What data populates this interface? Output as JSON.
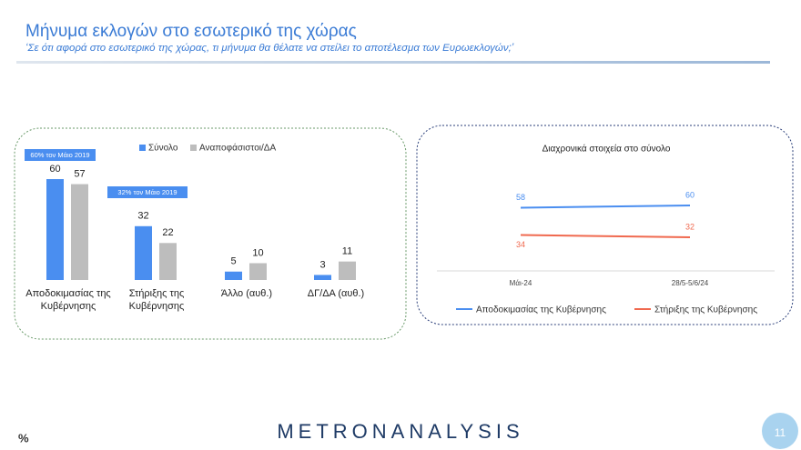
{
  "header": {
    "title": "Μήνυμα εκλογών στο εσωτερικό της χώρας",
    "subtitle": "‘Σε ότι αφορά στο εσωτερικό της χώρας, τι μήνυμα θα θέλατε να στείλει το αποτέλεσμα των Ευρωεκλογών;’"
  },
  "chart_data": [
    {
      "type": "bar",
      "categories": [
        "Αποδοκιμασίας της Κυβέρνησης",
        "Στήριξης της Κυβέρνησης",
        "Άλλο (αυθ.)",
        "ΔΓ/ΔΑ (αυθ.)"
      ],
      "series": [
        {
          "name": "Σύνολο",
          "color": "#4a8ef0",
          "values": [
            60,
            32,
            5,
            3
          ]
        },
        {
          "name": "Αναποφάσιστοι/ΔΑ",
          "color": "#bdbdbd",
          "values": [
            57,
            22,
            10,
            11
          ]
        }
      ],
      "annotations": [
        "60% τον Μάιο 2019",
        "32% τον Μάιο 2019"
      ],
      "annotation_color": "#4a8ef0"
    },
    {
      "type": "line",
      "title": "Διαχρονικά στοιχεία στο σύνολο",
      "categories": [
        "Μάι-24",
        "28/5-5/6/24"
      ],
      "series": [
        {
          "name": "Αποδοκιμασίας της Κυβέρνησης",
          "color": "#4a8ef0",
          "values": [
            58,
            60
          ]
        },
        {
          "name": "Στήριξης της Κυβέρνησης",
          "color": "#f0694f",
          "values": [
            34,
            32
          ]
        }
      ]
    }
  ],
  "footer": {
    "unit": "%",
    "brand": "METRONANALYSIS",
    "page": "11"
  }
}
